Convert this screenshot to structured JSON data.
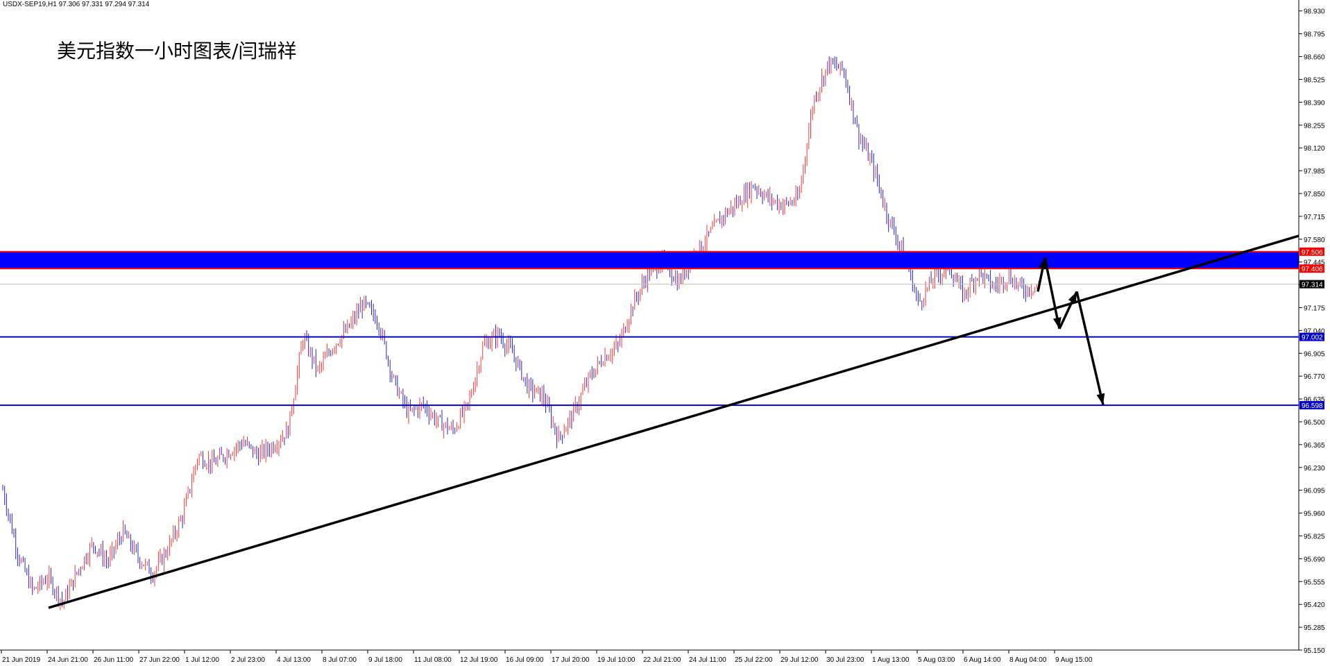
{
  "header": {
    "symbol_line": "USDX-SEP19,H1  97.306 97.331 97.294 97.314"
  },
  "chart_data": {
    "type": "candlestick",
    "title": "美元指数一小时图表/闫瑞祥",
    "ylim": [
      95.15,
      98.97
    ],
    "y_ticks": [
      "98.930",
      "98.795",
      "98.660",
      "98.525",
      "98.390",
      "98.255",
      "98.120",
      "97.985",
      "97.850",
      "97.715",
      "97.580",
      "97.445",
      "97.310",
      "97.175",
      "97.040",
      "96.905",
      "96.770",
      "96.635",
      "96.500",
      "96.365",
      "96.230",
      "96.095",
      "95.960",
      "95.825",
      "95.690",
      "95.555",
      "95.420",
      "95.285",
      "95.150"
    ],
    "x_ticks": [
      "21 Jun 2019",
      "24 Jun 21:00",
      "26 Jun 11:00",
      "27 Jun 22:00",
      "1 Jul 12:00",
      "2 Jul 23:00",
      "4 Jul 13:00",
      "8 Jul 07:00",
      "9 Jul 18:00",
      "11 Jul 08:00",
      "12 Jul 19:00",
      "16 Jul 09:00",
      "17 Jul 20:00",
      "19 Jul 10:00",
      "22 Jul 21:00",
      "24 Jul 11:00",
      "25 Jul 22:00",
      "29 Jul 12:00",
      "30 Jul 23:00",
      "1 Aug 13:00",
      "5 Aug 03:00",
      "6 Aug 14:00",
      "8 Aug 04:00",
      "9 Aug 15:00"
    ],
    "resistance_zone": {
      "upper": "97.506",
      "lower": "97.406"
    },
    "support_levels": [
      "97.002",
      "96.598"
    ],
    "current_price": "97.314",
    "price_path": [
      96.1,
      95.72,
      95.5,
      95.58,
      95.43,
      95.62,
      95.78,
      95.67,
      95.85,
      95.7,
      95.6,
      95.75,
      95.95,
      96.3,
      96.25,
      96.32,
      96.38,
      96.3,
      96.36,
      96.45,
      97.0,
      96.8,
      96.95,
      97.05,
      97.2,
      97.1,
      96.75,
      96.55,
      96.6,
      96.5,
      96.45,
      96.6,
      96.95,
      97.02,
      96.9,
      96.7,
      96.65,
      96.4,
      96.55,
      96.75,
      96.88,
      96.95,
      97.2,
      97.38,
      97.45,
      97.32,
      97.48,
      97.6,
      97.72,
      97.8,
      97.9,
      97.82,
      97.78,
      97.82,
      98.4,
      98.62,
      98.58,
      98.2,
      98.0,
      97.7,
      97.5,
      97.2,
      97.35,
      97.42,
      97.25,
      97.38,
      97.3,
      97.36,
      97.28,
      97.31
    ],
    "trendline": {
      "from": [
        "24 Jun 21:00",
        95.4
      ],
      "to": [
        "9 Aug 15:00+",
        97.6
      ]
    },
    "projection_arrows": [
      [
        97.27,
        97.47
      ],
      [
        97.47,
        97.05
      ],
      [
        97.05,
        97.27
      ],
      [
        97.27,
        96.6
      ]
    ],
    "colors": {
      "bull": "#ff3333",
      "bear": "#2222dd",
      "zone": "#0000ff",
      "zone_border": "#ff0000",
      "support": "#0000cc",
      "trend": "#000000",
      "current_label_bg": "#000000"
    }
  }
}
